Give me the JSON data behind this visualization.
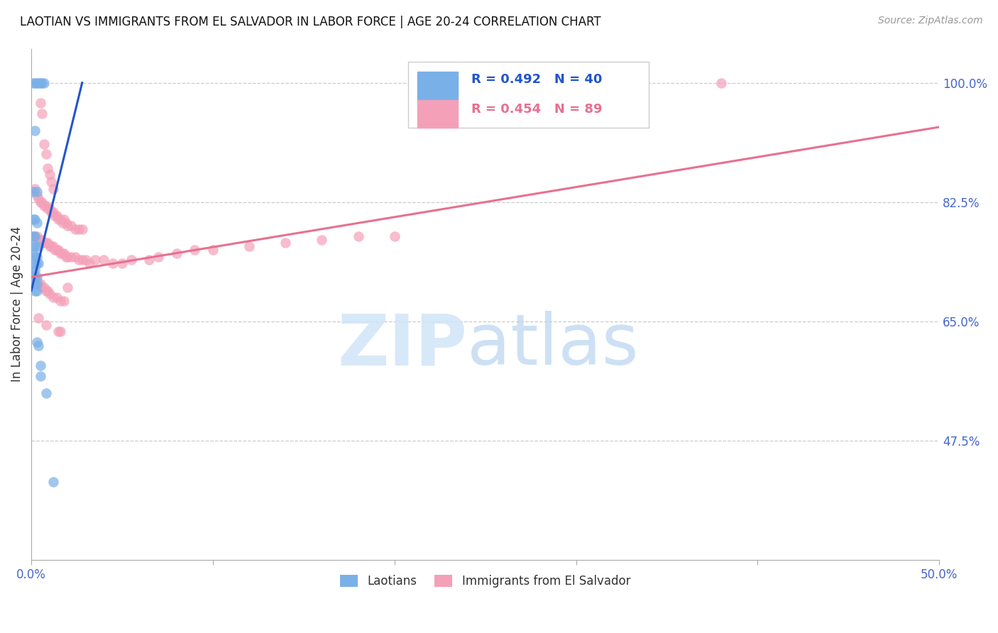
{
  "title": "LAOTIAN VS IMMIGRANTS FROM EL SALVADOR IN LABOR FORCE | AGE 20-24 CORRELATION CHART",
  "source": "Source: ZipAtlas.com",
  "ylabel": "In Labor Force | Age 20-24",
  "xlim": [
    0.0,
    0.5
  ],
  "ylim": [
    0.3,
    1.05
  ],
  "xticks": [
    0.0,
    0.5
  ],
  "xticklabels": [
    "0.0%",
    "50.0%"
  ],
  "yticks": [
    0.475,
    0.65,
    0.825,
    1.0
  ],
  "yticklabels": [
    "47.5%",
    "65.0%",
    "82.5%",
    "100.0%"
  ],
  "grid_color": "#cccccc",
  "axis_color": "#aaaaaa",
  "tick_color": "#4466cc",
  "legend_blue_label": "Laotians",
  "legend_pink_label": "Immigrants from El Salvador",
  "blue_R": 0.492,
  "blue_N": 40,
  "pink_R": 0.454,
  "pink_N": 89,
  "blue_color": "#7ab0e8",
  "pink_color": "#f4a0b8",
  "blue_line_color": "#2255cc",
  "pink_line_color": "#e87090",
  "blue_line": [
    [
      0.0,
      0.695
    ],
    [
      0.028,
      1.0
    ]
  ],
  "pink_line": [
    [
      0.0,
      0.715
    ],
    [
      0.5,
      0.935
    ]
  ],
  "blue_points": [
    [
      0.001,
      1.0
    ],
    [
      0.002,
      1.0
    ],
    [
      0.003,
      1.0
    ],
    [
      0.004,
      1.0
    ],
    [
      0.005,
      1.0
    ],
    [
      0.006,
      1.0
    ],
    [
      0.007,
      1.0
    ],
    [
      0.002,
      0.93
    ],
    [
      0.001,
      0.84
    ],
    [
      0.003,
      0.84
    ],
    [
      0.001,
      0.8
    ],
    [
      0.002,
      0.8
    ],
    [
      0.003,
      0.795
    ],
    [
      0.001,
      0.775
    ],
    [
      0.002,
      0.775
    ],
    [
      0.001,
      0.76
    ],
    [
      0.002,
      0.76
    ],
    [
      0.004,
      0.76
    ],
    [
      0.001,
      0.75
    ],
    [
      0.002,
      0.745
    ],
    [
      0.003,
      0.745
    ],
    [
      0.002,
      0.735
    ],
    [
      0.003,
      0.735
    ],
    [
      0.004,
      0.735
    ],
    [
      0.001,
      0.725
    ],
    [
      0.002,
      0.725
    ],
    [
      0.002,
      0.715
    ],
    [
      0.003,
      0.715
    ],
    [
      0.002,
      0.705
    ],
    [
      0.003,
      0.705
    ],
    [
      0.002,
      0.695
    ],
    [
      0.003,
      0.695
    ],
    [
      0.003,
      0.62
    ],
    [
      0.004,
      0.615
    ],
    [
      0.005,
      0.585
    ],
    [
      0.005,
      0.57
    ],
    [
      0.008,
      0.545
    ],
    [
      0.012,
      0.415
    ]
  ],
  "pink_points": [
    [
      0.38,
      1.0
    ],
    [
      0.005,
      0.97
    ],
    [
      0.006,
      0.955
    ],
    [
      0.007,
      0.91
    ],
    [
      0.008,
      0.895
    ],
    [
      0.009,
      0.875
    ],
    [
      0.01,
      0.865
    ],
    [
      0.011,
      0.855
    ],
    [
      0.012,
      0.845
    ],
    [
      0.002,
      0.845
    ],
    [
      0.003,
      0.835
    ],
    [
      0.004,
      0.83
    ],
    [
      0.005,
      0.825
    ],
    [
      0.006,
      0.825
    ],
    [
      0.007,
      0.82
    ],
    [
      0.008,
      0.82
    ],
    [
      0.009,
      0.815
    ],
    [
      0.01,
      0.815
    ],
    [
      0.011,
      0.81
    ],
    [
      0.012,
      0.81
    ],
    [
      0.013,
      0.805
    ],
    [
      0.014,
      0.805
    ],
    [
      0.015,
      0.8
    ],
    [
      0.016,
      0.8
    ],
    [
      0.017,
      0.795
    ],
    [
      0.018,
      0.8
    ],
    [
      0.019,
      0.795
    ],
    [
      0.02,
      0.79
    ],
    [
      0.022,
      0.79
    ],
    [
      0.024,
      0.785
    ],
    [
      0.026,
      0.785
    ],
    [
      0.028,
      0.785
    ],
    [
      0.001,
      0.775
    ],
    [
      0.002,
      0.775
    ],
    [
      0.003,
      0.775
    ],
    [
      0.004,
      0.77
    ],
    [
      0.005,
      0.77
    ],
    [
      0.006,
      0.77
    ],
    [
      0.007,
      0.765
    ],
    [
      0.008,
      0.765
    ],
    [
      0.009,
      0.765
    ],
    [
      0.01,
      0.76
    ],
    [
      0.011,
      0.76
    ],
    [
      0.012,
      0.76
    ],
    [
      0.013,
      0.755
    ],
    [
      0.014,
      0.755
    ],
    [
      0.015,
      0.755
    ],
    [
      0.016,
      0.75
    ],
    [
      0.017,
      0.75
    ],
    [
      0.018,
      0.75
    ],
    [
      0.019,
      0.745
    ],
    [
      0.02,
      0.745
    ],
    [
      0.022,
      0.745
    ],
    [
      0.024,
      0.745
    ],
    [
      0.026,
      0.74
    ],
    [
      0.028,
      0.74
    ],
    [
      0.03,
      0.74
    ],
    [
      0.032,
      0.735
    ],
    [
      0.035,
      0.74
    ],
    [
      0.04,
      0.74
    ],
    [
      0.045,
      0.735
    ],
    [
      0.05,
      0.735
    ],
    [
      0.055,
      0.74
    ],
    [
      0.065,
      0.74
    ],
    [
      0.07,
      0.745
    ],
    [
      0.08,
      0.75
    ],
    [
      0.09,
      0.755
    ],
    [
      0.1,
      0.755
    ],
    [
      0.12,
      0.76
    ],
    [
      0.14,
      0.765
    ],
    [
      0.16,
      0.77
    ],
    [
      0.18,
      0.775
    ],
    [
      0.2,
      0.775
    ],
    [
      0.001,
      0.715
    ],
    [
      0.002,
      0.71
    ],
    [
      0.003,
      0.71
    ],
    [
      0.004,
      0.705
    ],
    [
      0.005,
      0.705
    ],
    [
      0.006,
      0.7
    ],
    [
      0.007,
      0.7
    ],
    [
      0.008,
      0.695
    ],
    [
      0.009,
      0.695
    ],
    [
      0.01,
      0.69
    ],
    [
      0.012,
      0.685
    ],
    [
      0.014,
      0.685
    ],
    [
      0.016,
      0.68
    ],
    [
      0.018,
      0.68
    ],
    [
      0.004,
      0.655
    ],
    [
      0.008,
      0.645
    ],
    [
      0.015,
      0.635
    ],
    [
      0.016,
      0.635
    ],
    [
      0.02,
      0.7
    ]
  ]
}
